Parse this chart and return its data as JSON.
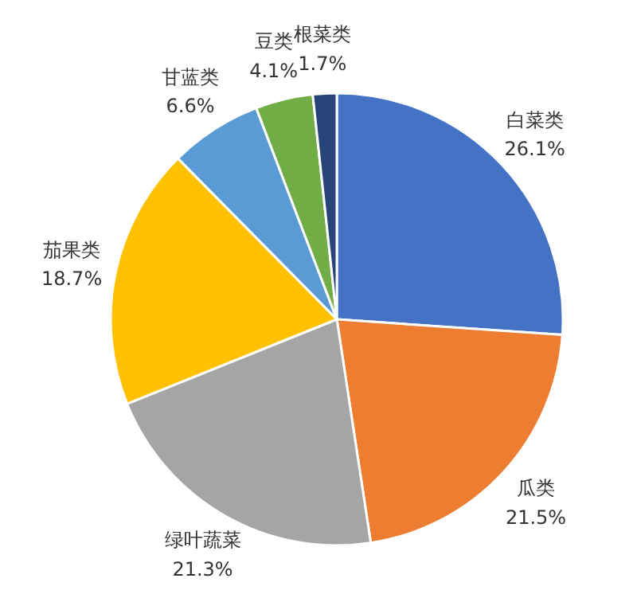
{
  "chart_data": {
    "type": "pie",
    "categories": [
      "白菜类",
      "瓜类",
      "绿叶蔬菜",
      "茄果类",
      "甘蓝类",
      "豆类",
      "根菜类"
    ],
    "values": [
      26.1,
      21.5,
      21.3,
      18.7,
      6.6,
      4.1,
      1.7
    ],
    "colors": [
      "#4472c4",
      "#ed7d31",
      "#a5a5a5",
      "#ffc000",
      "#5b9bd5",
      "#70ad47",
      "#264478"
    ],
    "value_labels": [
      "26.1%",
      "21.5%",
      "21.3%",
      "18.7%",
      "6.6%",
      "4.1%",
      "1.7%"
    ]
  }
}
